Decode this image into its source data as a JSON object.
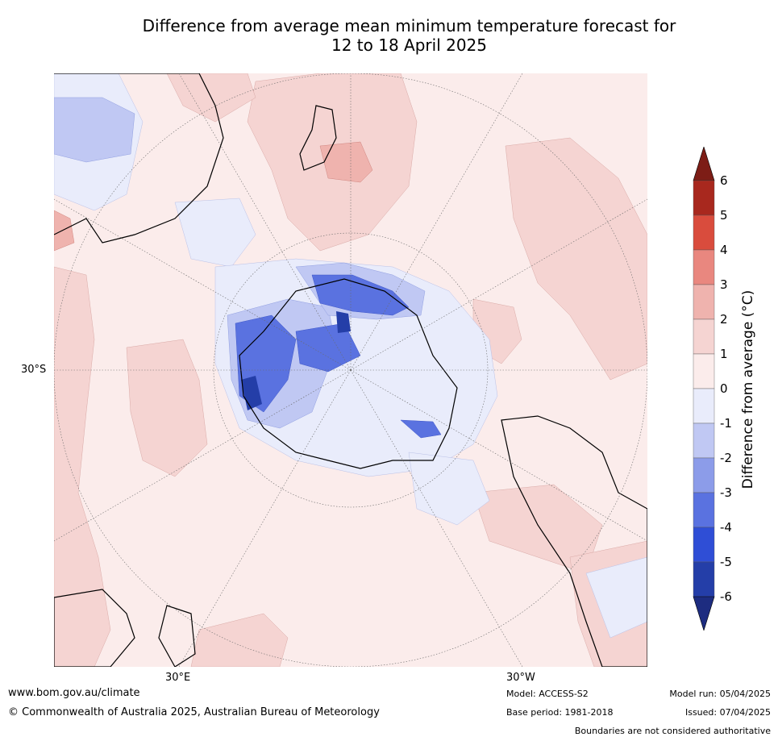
{
  "title": {
    "line1": "Difference from average mean minimum temperature forecast for",
    "line2": "12 to 18 April 2025"
  },
  "map": {
    "projection": "south-polar-stereographic",
    "lat_label": "30°S",
    "lon_labels": [
      "30°E",
      "30°W"
    ],
    "background_color": "#fbeceb",
    "coast_color": "#000000",
    "gridline_style": "dotted"
  },
  "colorbar": {
    "label": "Difference from average (°C)",
    "ticks": [
      "6",
      "5",
      "4",
      "3",
      "2",
      "1",
      "0",
      "-1",
      "-2",
      "-3",
      "-4",
      "-5",
      "-6"
    ],
    "colors_top_to_bottom": [
      "#a8281e",
      "#d94c3d",
      "#e9877f",
      "#efb3ae",
      "#f5d4d2",
      "#fbeceb",
      "#e9ecfb",
      "#c0c8f3",
      "#8c9ce9",
      "#5a72e0",
      "#2f4ed6",
      "#243ea8"
    ],
    "extend_high_color": "#7d1d16",
    "extend_low_color": "#1d2c80"
  },
  "footer": {
    "website": "www.bom.gov.au/climate",
    "copyright": "© Commonwealth of Australia 2025, Australian Bureau of Meteorology",
    "model": "Model: ACCESS-S2",
    "base_period": "Base period: 1981-2018",
    "model_run": "Model run: 05/04/2025",
    "issued": "Issued: 07/04/2025",
    "disclaimer": "Boundaries are not considered authoritative"
  }
}
